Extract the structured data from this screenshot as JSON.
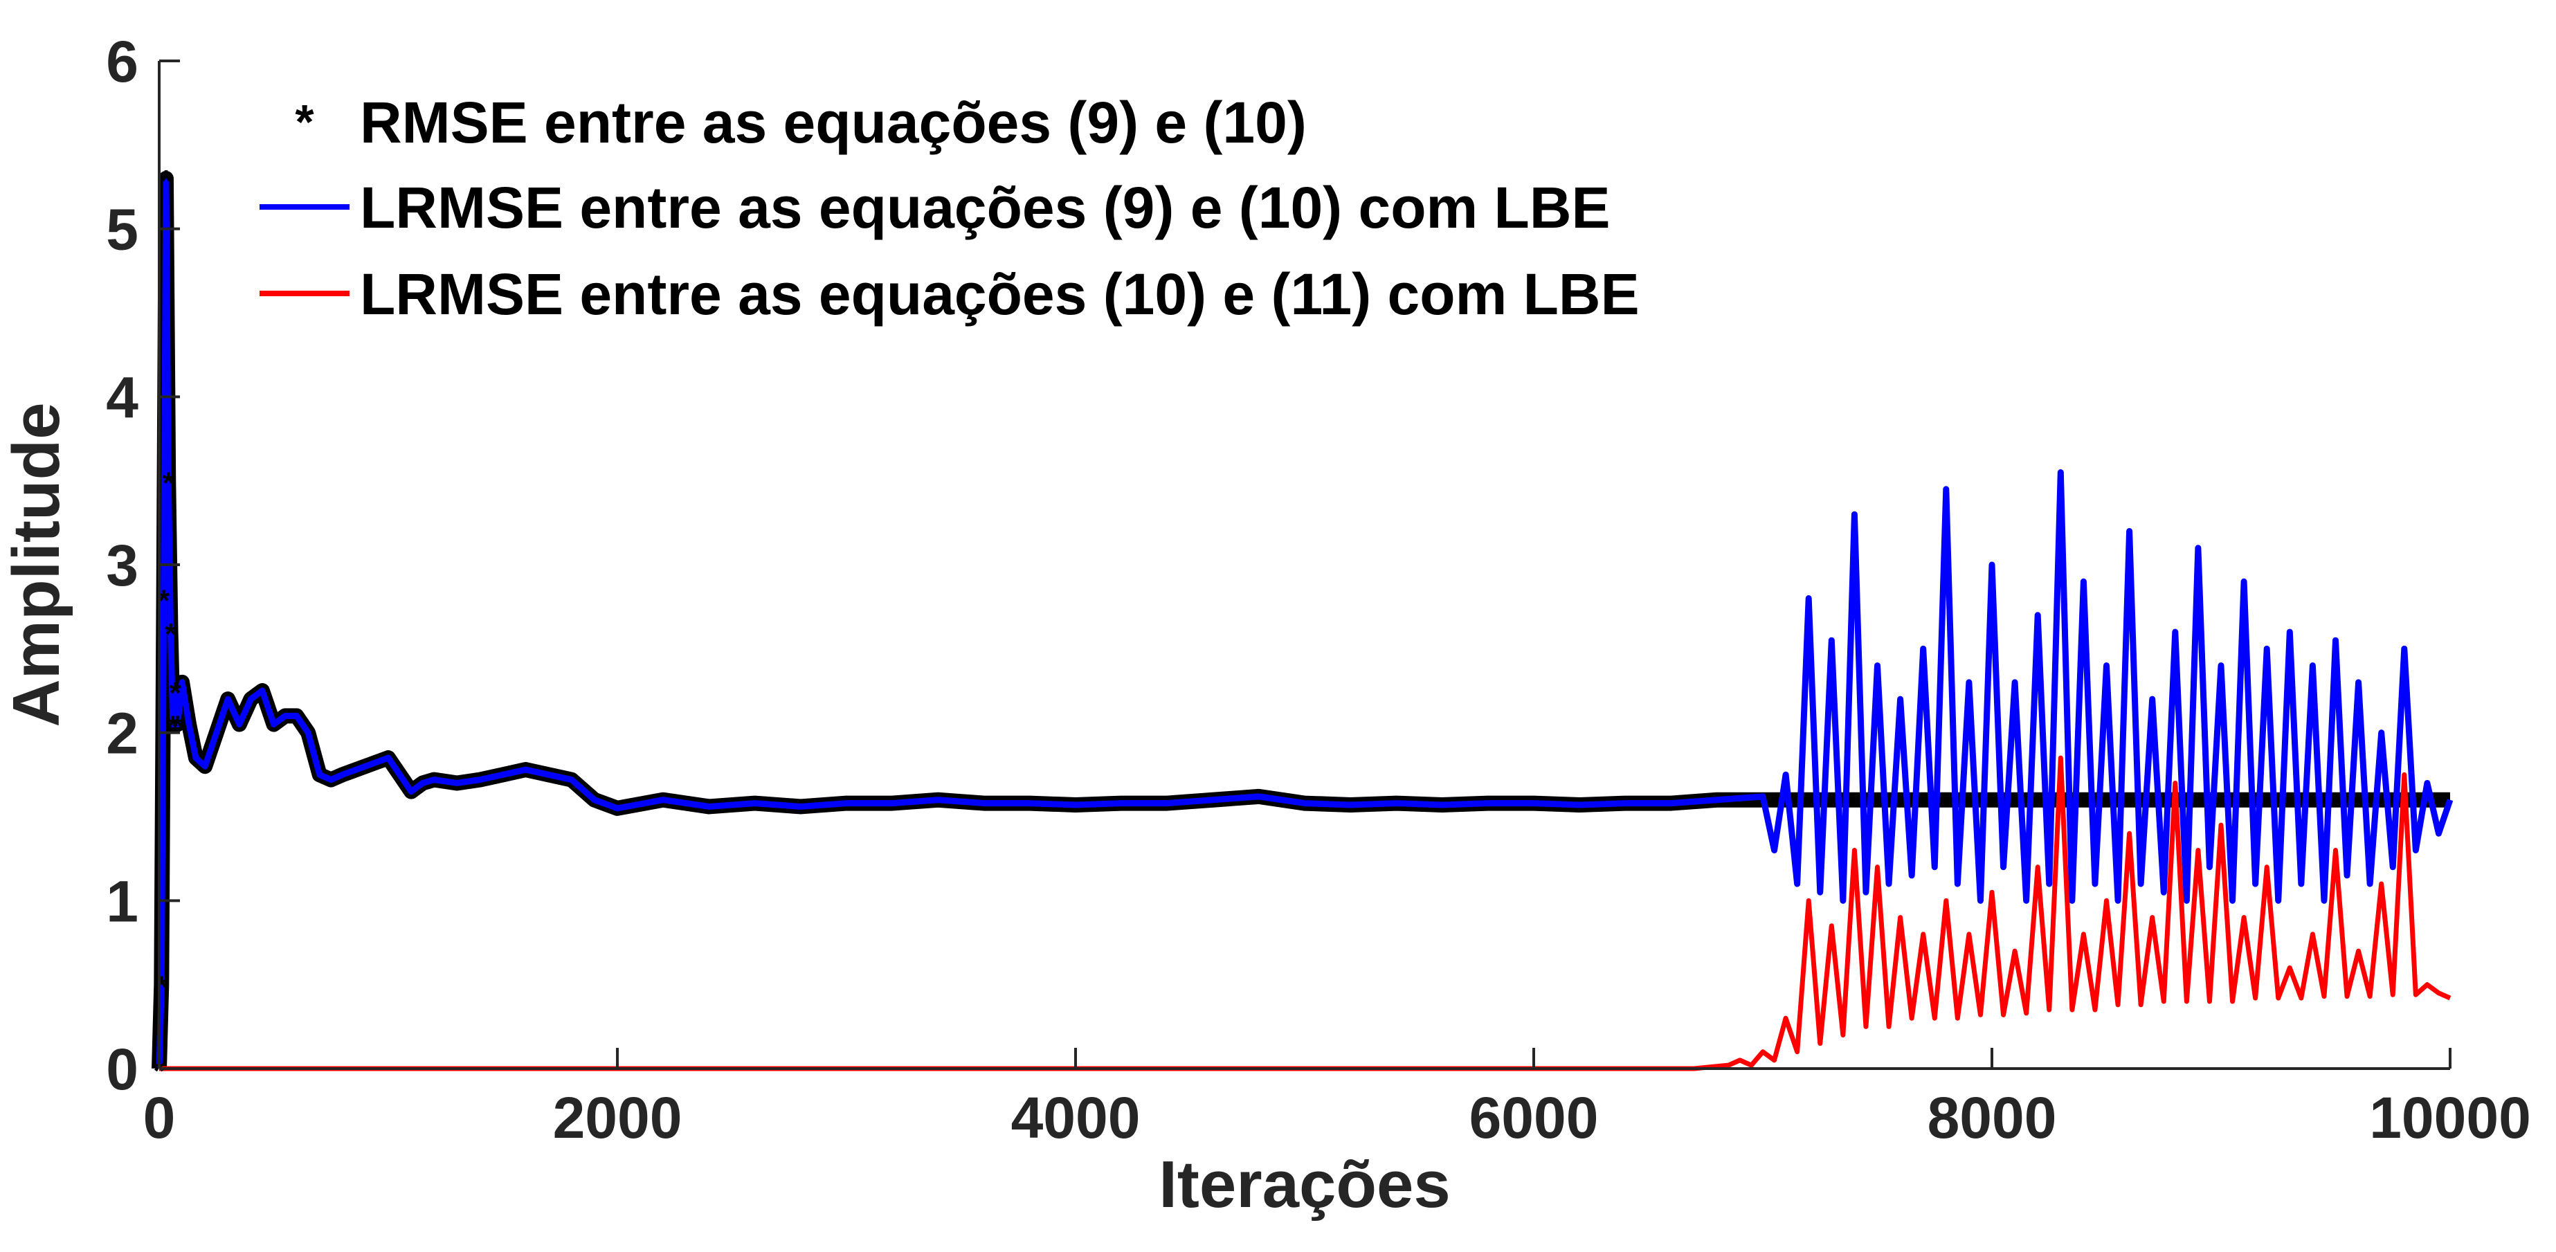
{
  "chart_data": {
    "type": "line",
    "xlabel": "Iterações",
    "ylabel": "Amplitude",
    "xlim": [
      0,
      10000
    ],
    "ylim": [
      0,
      6
    ],
    "x_ticks": [
      "0",
      "2000",
      "4000",
      "6000",
      "8000",
      "10000"
    ],
    "y_ticks": [
      "0",
      "1",
      "2",
      "3",
      "4",
      "5",
      "6"
    ],
    "grid": false,
    "legend_position": "top-left",
    "series": [
      {
        "name": "RMSE entre as equações (9) e (10)",
        "style": "marker-star",
        "color": "#000000",
        "x": [
          0,
          10,
          20,
          30,
          40,
          50,
          60,
          70,
          80,
          100,
          130,
          160,
          200,
          250,
          300,
          350,
          400,
          450,
          500,
          550,
          600,
          650,
          700,
          750,
          800,
          900,
          1000,
          1100,
          1150,
          1200,
          1300,
          1400,
          1500,
          1600,
          1700,
          1800,
          1900,
          2000,
          2200,
          2400,
          2600,
          2800,
          3000,
          3200,
          3400,
          3600,
          3800,
          4000,
          4200,
          4400,
          4600,
          4800,
          5000,
          5200,
          5400,
          5600,
          5800,
          6000,
          6200,
          6400,
          6600,
          6800,
          7000,
          7500,
          8000,
          8500,
          9000,
          9500,
          10000
        ],
        "y": [
          0,
          0.5,
          2.8,
          5.3,
          3.5,
          2.6,
          2.05,
          2.25,
          2.05,
          2.3,
          2.05,
          1.85,
          1.8,
          2.0,
          2.2,
          2.05,
          2.2,
          2.25,
          2.05,
          2.1,
          2.1,
          2.0,
          1.75,
          1.72,
          1.75,
          1.8,
          1.85,
          1.65,
          1.7,
          1.72,
          1.7,
          1.72,
          1.75,
          1.78,
          1.75,
          1.72,
          1.6,
          1.55,
          1.6,
          1.56,
          1.58,
          1.56,
          1.58,
          1.58,
          1.6,
          1.58,
          1.58,
          1.57,
          1.58,
          1.58,
          1.6,
          1.62,
          1.58,
          1.57,
          1.58,
          1.57,
          1.58,
          1.58,
          1.57,
          1.58,
          1.58,
          1.6,
          1.6,
          1.6,
          1.6,
          1.6,
          1.6,
          1.6,
          1.6
        ]
      },
      {
        "name": "LRMSE entre as equações (9) e (10) com LBE",
        "style": "line",
        "color": "#0000ff",
        "x": [
          0,
          10,
          20,
          30,
          40,
          50,
          60,
          70,
          80,
          100,
          130,
          160,
          200,
          250,
          300,
          350,
          400,
          450,
          500,
          550,
          600,
          650,
          700,
          750,
          800,
          900,
          1000,
          1100,
          1150,
          1200,
          1300,
          1400,
          1500,
          1600,
          1700,
          1800,
          1900,
          2000,
          2200,
          2400,
          2600,
          2800,
          3000,
          3200,
          3400,
          3600,
          3800,
          4000,
          4200,
          4400,
          4600,
          4800,
          5000,
          5200,
          5400,
          5600,
          5800,
          6000,
          6200,
          6400,
          6600,
          6800,
          7000,
          7050,
          7100,
          7150,
          7200,
          7250,
          7300,
          7350,
          7400,
          7450,
          7500,
          7550,
          7600,
          7650,
          7700,
          7750,
          7800,
          7850,
          7900,
          7950,
          8000,
          8050,
          8100,
          8150,
          8200,
          8250,
          8300,
          8350,
          8400,
          8450,
          8500,
          8550,
          8600,
          8650,
          8700,
          8750,
          8800,
          8850,
          8900,
          8950,
          9000,
          9050,
          9100,
          9150,
          9200,
          9250,
          9300,
          9350,
          9400,
          9450,
          9500,
          9550,
          9600,
          9650,
          9700,
          9750,
          9800,
          9850,
          9900,
          9950,
          10000
        ],
        "y": [
          0,
          0.5,
          2.8,
          5.3,
          3.5,
          2.6,
          2.05,
          2.25,
          2.05,
          2.3,
          2.05,
          1.85,
          1.8,
          2.0,
          2.2,
          2.05,
          2.2,
          2.25,
          2.05,
          2.1,
          2.1,
          2.0,
          1.75,
          1.72,
          1.75,
          1.8,
          1.85,
          1.65,
          1.7,
          1.72,
          1.7,
          1.72,
          1.75,
          1.78,
          1.75,
          1.72,
          1.6,
          1.55,
          1.6,
          1.56,
          1.58,
          1.56,
          1.58,
          1.58,
          1.6,
          1.58,
          1.58,
          1.57,
          1.58,
          1.58,
          1.6,
          1.62,
          1.58,
          1.57,
          1.58,
          1.57,
          1.58,
          1.58,
          1.57,
          1.58,
          1.58,
          1.6,
          1.62,
          1.3,
          1.75,
          1.1,
          2.8,
          1.05,
          2.55,
          1.0,
          3.3,
          1.05,
          2.4,
          1.1,
          2.2,
          1.15,
          2.5,
          1.2,
          3.45,
          1.1,
          2.3,
          1.0,
          3.0,
          1.2,
          2.3,
          1.0,
          2.7,
          1.1,
          3.55,
          1.0,
          2.9,
          1.1,
          2.4,
          1.0,
          3.2,
          1.1,
          2.2,
          1.05,
          2.6,
          1.0,
          3.1,
          1.2,
          2.4,
          1.0,
          2.9,
          1.1,
          2.5,
          1.0,
          2.6,
          1.1,
          2.4,
          1.0,
          2.55,
          1.15,
          2.3,
          1.1,
          2.0,
          1.2,
          2.5,
          1.3,
          1.7,
          1.4,
          1.6
        ]
      },
      {
        "name": "LRMSE entre as equações (10) e (11) com LBE",
        "style": "line",
        "color": "#ff0000",
        "x": [
          0,
          6700,
          6850,
          6900,
          6950,
          7000,
          7050,
          7100,
          7150,
          7200,
          7250,
          7300,
          7350,
          7400,
          7450,
          7500,
          7550,
          7600,
          7650,
          7700,
          7750,
          7800,
          7850,
          7900,
          7950,
          8000,
          8050,
          8100,
          8150,
          8200,
          8250,
          8300,
          8350,
          8400,
          8450,
          8500,
          8550,
          8600,
          8650,
          8700,
          8750,
          8800,
          8850,
          8900,
          8950,
          9000,
          9050,
          9100,
          9150,
          9200,
          9250,
          9300,
          9350,
          9400,
          9450,
          9500,
          9550,
          9600,
          9650,
          9700,
          9750,
          9800,
          9850,
          9900,
          9950,
          10000
        ],
        "y": [
          0,
          0,
          0.02,
          0.05,
          0.02,
          0.1,
          0.05,
          0.3,
          0.1,
          1.0,
          0.15,
          0.85,
          0.2,
          1.3,
          0.25,
          1.2,
          0.25,
          0.9,
          0.3,
          0.8,
          0.3,
          1.0,
          0.3,
          0.8,
          0.32,
          1.05,
          0.32,
          0.7,
          0.33,
          1.2,
          0.35,
          1.85,
          0.35,
          0.8,
          0.35,
          1.0,
          0.38,
          1.4,
          0.38,
          0.9,
          0.4,
          1.7,
          0.4,
          1.3,
          0.4,
          1.45,
          0.4,
          0.9,
          0.42,
          1.2,
          0.42,
          0.6,
          0.42,
          0.8,
          0.43,
          1.3,
          0.43,
          0.7,
          0.43,
          1.1,
          0.44,
          1.75,
          0.44,
          0.5,
          0.45,
          0.42
        ]
      }
    ]
  }
}
